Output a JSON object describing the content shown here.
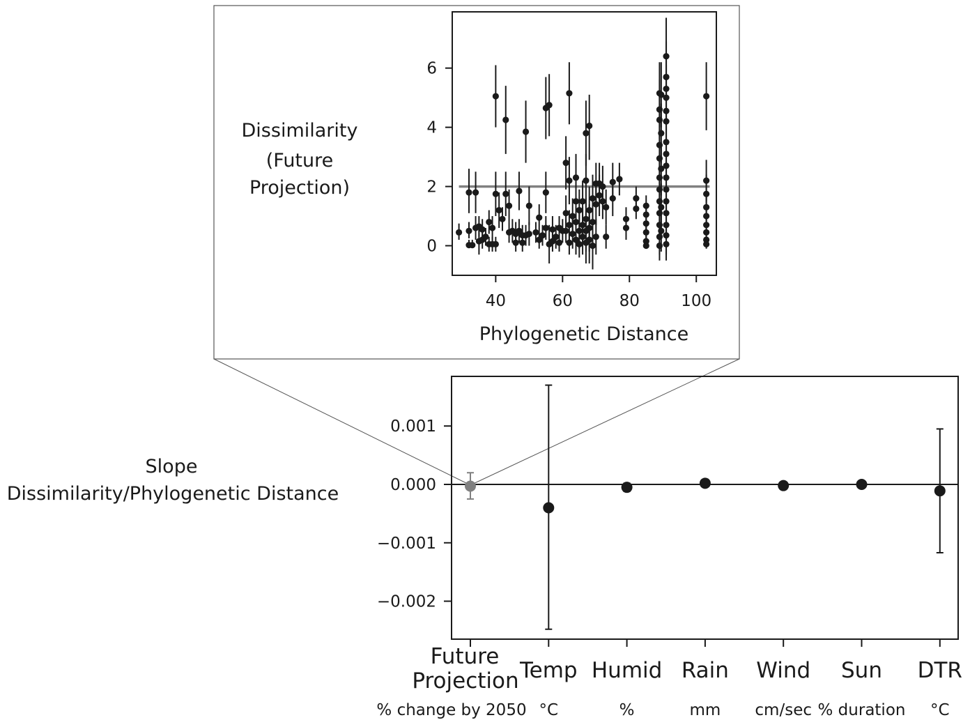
{
  "chart_data": [
    {
      "id": "inset",
      "type": "scatter",
      "xlabel": "Phylogenetic Distance",
      "ylabel_lines": [
        "Dissimilarity",
        "(Future",
        "Projection)"
      ],
      "xticks": [
        40,
        60,
        80,
        100
      ],
      "yticks": [
        0,
        2,
        4,
        6
      ],
      "xlim": [
        27,
        106
      ],
      "ylim": [
        -1.0,
        7.9
      ],
      "fit_line": {
        "x": [
          29,
          104
        ],
        "y": [
          2.0,
          2.0
        ],
        "color": "#808080"
      },
      "points": [
        {
          "x": 29,
          "y": 0.45,
          "lo": 0.2,
          "hi": 0.75
        },
        {
          "x": 32,
          "y": 1.8,
          "lo": 1.1,
          "hi": 2.6
        },
        {
          "x": 32,
          "y": 0.5,
          "lo": 0.25,
          "hi": 0.8
        },
        {
          "x": 32,
          "y": 0.02,
          "lo": 0.0,
          "hi": 0.2
        },
        {
          "x": 33,
          "y": 0.02,
          "lo": 0.0,
          "hi": 0.2
        },
        {
          "x": 34,
          "y": 1.8,
          "lo": 1.1,
          "hi": 2.5
        },
        {
          "x": 34,
          "y": 0.6,
          "lo": 0.2,
          "hi": 1.0
        },
        {
          "x": 35,
          "y": 0.15,
          "lo": -0.3,
          "hi": 0.6
        },
        {
          "x": 35,
          "y": 0.65,
          "lo": 0.3,
          "hi": 1.0
        },
        {
          "x": 36,
          "y": 0.55,
          "lo": 0.3,
          "hi": 0.9
        },
        {
          "x": 36,
          "y": 0.2,
          "lo": -0.1,
          "hi": 0.5
        },
        {
          "x": 37,
          "y": 0.3,
          "lo": 0.0,
          "hi": 0.6
        },
        {
          "x": 38,
          "y": 0.05,
          "lo": -0.2,
          "hi": 0.3
        },
        {
          "x": 38,
          "y": 0.8,
          "lo": 0.4,
          "hi": 1.2
        },
        {
          "x": 39,
          "y": 0.05,
          "lo": -0.2,
          "hi": 0.3
        },
        {
          "x": 39,
          "y": 0.6,
          "lo": 0.2,
          "hi": 1.0
        },
        {
          "x": 40,
          "y": 0.05,
          "lo": -0.2,
          "hi": 0.3
        },
        {
          "x": 40,
          "y": 1.75,
          "lo": 1.0,
          "hi": 2.5
        },
        {
          "x": 40,
          "y": 5.05,
          "lo": 4.0,
          "hi": 6.1
        },
        {
          "x": 41,
          "y": 1.2,
          "lo": 0.6,
          "hi": 1.8
        },
        {
          "x": 42,
          "y": 0.9,
          "lo": 0.5,
          "hi": 1.3
        },
        {
          "x": 43,
          "y": 4.25,
          "lo": 3.1,
          "hi": 5.4
        },
        {
          "x": 43,
          "y": 1.75,
          "lo": 1.0,
          "hi": 2.5
        },
        {
          "x": 44,
          "y": 0.45,
          "lo": 0.1,
          "hi": 0.8
        },
        {
          "x": 44,
          "y": 1.35,
          "lo": 0.8,
          "hi": 1.9
        },
        {
          "x": 45,
          "y": 0.5,
          "lo": 0.1,
          "hi": 0.9
        },
        {
          "x": 46,
          "y": 0.4,
          "lo": 0.0,
          "hi": 0.8
        },
        {
          "x": 46,
          "y": 0.1,
          "lo": -0.2,
          "hi": 0.4
        },
        {
          "x": 47,
          "y": 1.85,
          "lo": 1.2,
          "hi": 2.5
        },
        {
          "x": 47,
          "y": 0.5,
          "lo": 0.1,
          "hi": 0.9
        },
        {
          "x": 48,
          "y": 0.1,
          "lo": -0.2,
          "hi": 0.4
        },
        {
          "x": 48,
          "y": 0.35,
          "lo": 0.0,
          "hi": 0.7
        },
        {
          "x": 49,
          "y": 3.85,
          "lo": 2.8,
          "hi": 4.9
        },
        {
          "x": 49,
          "y": 0.35,
          "lo": 0.0,
          "hi": 0.7
        },
        {
          "x": 50,
          "y": 1.35,
          "lo": 0.7,
          "hi": 2.0
        },
        {
          "x": 50,
          "y": 0.4,
          "lo": 0.0,
          "hi": 0.8
        },
        {
          "x": 52,
          "y": 0.45,
          "lo": 0.1,
          "hi": 0.8
        },
        {
          "x": 53,
          "y": 0.95,
          "lo": 0.5,
          "hi": 1.4
        },
        {
          "x": 53,
          "y": 0.2,
          "lo": -0.1,
          "hi": 0.5
        },
        {
          "x": 54,
          "y": 0.35,
          "lo": 0.0,
          "hi": 0.7
        },
        {
          "x": 55,
          "y": 4.65,
          "lo": 3.6,
          "hi": 5.7
        },
        {
          "x": 55,
          "y": 1.8,
          "lo": 1.1,
          "hi": 2.5
        },
        {
          "x": 55,
          "y": 0.6,
          "lo": 0.2,
          "hi": 1.0
        },
        {
          "x": 56,
          "y": 4.75,
          "lo": 3.7,
          "hi": 5.8
        },
        {
          "x": 56,
          "y": 0.05,
          "lo": -0.6,
          "hi": 0.7
        },
        {
          "x": 57,
          "y": 0.55,
          "lo": 0.1,
          "hi": 1.0
        },
        {
          "x": 57,
          "y": 0.15,
          "lo": -0.2,
          "hi": 0.5
        },
        {
          "x": 58,
          "y": 0.3,
          "lo": -0.1,
          "hi": 0.7
        },
        {
          "x": 59,
          "y": 0.6,
          "lo": 0.2,
          "hi": 1.0
        },
        {
          "x": 59,
          "y": 0.1,
          "lo": -0.2,
          "hi": 0.4
        },
        {
          "x": 60,
          "y": 0.5,
          "lo": 0.1,
          "hi": 0.9
        },
        {
          "x": 61,
          "y": 2.8,
          "lo": 1.9,
          "hi": 3.7
        },
        {
          "x": 61,
          "y": 1.1,
          "lo": 0.5,
          "hi": 1.7
        },
        {
          "x": 61,
          "y": 0.5,
          "lo": 0.1,
          "hi": 0.9
        },
        {
          "x": 62,
          "y": 5.15,
          "lo": 4.1,
          "hi": 6.2
        },
        {
          "x": 62,
          "y": 2.2,
          "lo": 1.4,
          "hi": 3.0
        },
        {
          "x": 62,
          "y": 0.7,
          "lo": 0.2,
          "hi": 1.2
        },
        {
          "x": 62,
          "y": 0.1,
          "lo": -0.3,
          "hi": 0.5
        },
        {
          "x": 63,
          "y": 1.0,
          "lo": 0.4,
          "hi": 1.6
        },
        {
          "x": 63,
          "y": 0.4,
          "lo": -0.1,
          "hi": 0.9
        },
        {
          "x": 64,
          "y": 2.3,
          "lo": 1.5,
          "hi": 3.1
        },
        {
          "x": 64,
          "y": 1.5,
          "lo": 0.8,
          "hi": 2.2
        },
        {
          "x": 64,
          "y": 0.8,
          "lo": 0.2,
          "hi": 1.4
        },
        {
          "x": 64,
          "y": 0.2,
          "lo": -0.3,
          "hi": 0.7
        },
        {
          "x": 65,
          "y": 0.5,
          "lo": -0.1,
          "hi": 1.1
        },
        {
          "x": 65,
          "y": 1.2,
          "lo": 0.5,
          "hi": 1.9
        },
        {
          "x": 65,
          "y": 0.05,
          "lo": -0.4,
          "hi": 0.5
        },
        {
          "x": 66,
          "y": 0.7,
          "lo": 0.1,
          "hi": 1.3
        },
        {
          "x": 66,
          "y": 0.3,
          "lo": -0.3,
          "hi": 0.9
        },
        {
          "x": 66,
          "y": 1.5,
          "lo": 0.8,
          "hi": 2.2
        },
        {
          "x": 67,
          "y": 2.2,
          "lo": 1.3,
          "hi": 3.1
        },
        {
          "x": 67,
          "y": 3.8,
          "lo": 2.7,
          "hi": 4.9
        },
        {
          "x": 67,
          "y": 0.9,
          "lo": 0.2,
          "hi": 1.6
        },
        {
          "x": 67,
          "y": 0.1,
          "lo": -0.6,
          "hi": 0.8
        },
        {
          "x": 67,
          "y": 0.5,
          "lo": -0.2,
          "hi": 1.2
        },
        {
          "x": 68,
          "y": 4.05,
          "lo": 2.9,
          "hi": 5.1
        },
        {
          "x": 68,
          "y": 1.2,
          "lo": 0.4,
          "hi": 2.0
        },
        {
          "x": 68,
          "y": 0.6,
          "lo": -0.2,
          "hi": 1.4
        },
        {
          "x": 68,
          "y": 0.2,
          "lo": -0.6,
          "hi": 1.0
        },
        {
          "x": 69,
          "y": 0.8,
          "lo": 0.0,
          "hi": 1.6
        },
        {
          "x": 69,
          "y": 1.6,
          "lo": 0.8,
          "hi": 2.4
        },
        {
          "x": 69,
          "y": 0.0,
          "lo": -0.8,
          "hi": 0.8
        },
        {
          "x": 70,
          "y": 2.1,
          "lo": 1.4,
          "hi": 2.8
        },
        {
          "x": 70,
          "y": 1.4,
          "lo": 0.7,
          "hi": 2.1
        },
        {
          "x": 70,
          "y": 0.3,
          "lo": -0.3,
          "hi": 0.9
        },
        {
          "x": 71,
          "y": 2.1,
          "lo": 1.4,
          "hi": 2.8
        },
        {
          "x": 71,
          "y": 1.7,
          "lo": 1.0,
          "hi": 2.4
        },
        {
          "x": 72,
          "y": 2.0,
          "lo": 1.3,
          "hi": 2.7
        },
        {
          "x": 72,
          "y": 1.5,
          "lo": 0.9,
          "hi": 2.1
        },
        {
          "x": 73,
          "y": 1.3,
          "lo": 0.7,
          "hi": 1.9
        },
        {
          "x": 73,
          "y": 0.3,
          "lo": -0.1,
          "hi": 0.7
        },
        {
          "x": 75,
          "y": 2.15,
          "lo": 1.5,
          "hi": 2.8
        },
        {
          "x": 75,
          "y": 1.6,
          "lo": 1.0,
          "hi": 2.2
        },
        {
          "x": 77,
          "y": 2.25,
          "lo": 1.7,
          "hi": 2.8
        },
        {
          "x": 79,
          "y": 0.9,
          "lo": 0.5,
          "hi": 1.3
        },
        {
          "x": 79,
          "y": 0.6,
          "lo": 0.2,
          "hi": 1.0
        },
        {
          "x": 82,
          "y": 1.6,
          "lo": 1.2,
          "hi": 2.0
        },
        {
          "x": 82,
          "y": 1.25,
          "lo": 0.9,
          "hi": 1.6
        },
        {
          "x": 85,
          "y": 1.35,
          "lo": 1.0,
          "hi": 1.7
        },
        {
          "x": 85,
          "y": 1.05,
          "lo": 0.7,
          "hi": 1.4
        },
        {
          "x": 85,
          "y": 0.75,
          "lo": 0.4,
          "hi": 1.1
        },
        {
          "x": 85,
          "y": 0.45,
          "lo": 0.1,
          "hi": 0.8
        },
        {
          "x": 85,
          "y": 0.15,
          "lo": -0.1,
          "hi": 0.4
        },
        {
          "x": 85,
          "y": 0.0,
          "lo": -0.1,
          "hi": 0.2
        },
        {
          "x": 89,
          "y": 5.15,
          "lo": 4.2,
          "hi": 6.2
        },
        {
          "x": 89,
          "y": 4.6,
          "lo": 3.6,
          "hi": 5.6
        },
        {
          "x": 89,
          "y": 4.25,
          "lo": 3.3,
          "hi": 5.2
        },
        {
          "x": 89,
          "y": 3.4,
          "lo": 2.5,
          "hi": 4.3
        },
        {
          "x": 89,
          "y": 2.95,
          "lo": 2.1,
          "hi": 3.8
        },
        {
          "x": 89,
          "y": 2.3,
          "lo": 1.5,
          "hi": 3.1
        },
        {
          "x": 89,
          "y": 1.9,
          "lo": 1.1,
          "hi": 2.7
        },
        {
          "x": 89,
          "y": 1.5,
          "lo": 0.8,
          "hi": 2.2
        },
        {
          "x": 89,
          "y": 1.1,
          "lo": 0.4,
          "hi": 1.8
        },
        {
          "x": 89,
          "y": 0.7,
          "lo": 0.0,
          "hi": 1.4
        },
        {
          "x": 89,
          "y": 0.3,
          "lo": -0.3,
          "hi": 0.9
        },
        {
          "x": 89,
          "y": 0.0,
          "lo": -0.5,
          "hi": 0.5
        },
        {
          "x": 89.5,
          "y": 5.1,
          "lo": 4.0,
          "hi": 6.2
        },
        {
          "x": 89.5,
          "y": 3.8,
          "lo": 2.8,
          "hi": 4.8
        },
        {
          "x": 89.5,
          "y": 2.6,
          "lo": 1.7,
          "hi": 3.5
        },
        {
          "x": 89.5,
          "y": 1.3,
          "lo": 0.5,
          "hi": 2.1
        },
        {
          "x": 89.5,
          "y": 0.5,
          "lo": -0.2,
          "hi": 1.2
        },
        {
          "x": 91,
          "y": 6.4,
          "lo": 5.1,
          "hi": 7.7
        },
        {
          "x": 91,
          "y": 5.7,
          "lo": 4.5,
          "hi": 6.9
        },
        {
          "x": 91,
          "y": 5.3,
          "lo": 4.2,
          "hi": 6.4
        },
        {
          "x": 91,
          "y": 5.0,
          "lo": 3.9,
          "hi": 6.1
        },
        {
          "x": 91,
          "y": 4.55,
          "lo": 3.5,
          "hi": 5.6
        },
        {
          "x": 91,
          "y": 4.2,
          "lo": 3.2,
          "hi": 5.2
        },
        {
          "x": 91,
          "y": 3.5,
          "lo": 2.6,
          "hi": 4.4
        },
        {
          "x": 91,
          "y": 3.1,
          "lo": 2.2,
          "hi": 4.0
        },
        {
          "x": 91,
          "y": 2.7,
          "lo": 1.8,
          "hi": 3.6
        },
        {
          "x": 91,
          "y": 2.3,
          "lo": 1.5,
          "hi": 3.1
        },
        {
          "x": 91,
          "y": 1.9,
          "lo": 1.1,
          "hi": 2.7
        },
        {
          "x": 91,
          "y": 1.5,
          "lo": 0.8,
          "hi": 2.2
        },
        {
          "x": 91,
          "y": 1.1,
          "lo": 0.4,
          "hi": 1.8
        },
        {
          "x": 91,
          "y": 0.7,
          "lo": 0.0,
          "hi": 1.4
        },
        {
          "x": 91,
          "y": 0.35,
          "lo": -0.3,
          "hi": 1.0
        },
        {
          "x": 91,
          "y": 0.05,
          "lo": -0.5,
          "hi": 0.6
        },
        {
          "x": 103,
          "y": 5.05,
          "lo": 3.9,
          "hi": 6.2
        },
        {
          "x": 103,
          "y": 2.2,
          "lo": 1.5,
          "hi": 2.9
        },
        {
          "x": 103,
          "y": 1.75,
          "lo": 1.1,
          "hi": 2.4
        },
        {
          "x": 103,
          "y": 1.3,
          "lo": 0.8,
          "hi": 1.8
        },
        {
          "x": 103,
          "y": 1.0,
          "lo": 0.6,
          "hi": 1.4
        },
        {
          "x": 103,
          "y": 0.7,
          "lo": 0.4,
          "hi": 1.0
        },
        {
          "x": 103,
          "y": 0.45,
          "lo": 0.2,
          "hi": 0.7
        },
        {
          "x": 103,
          "y": 0.2,
          "lo": 0.0,
          "hi": 0.4
        },
        {
          "x": 103,
          "y": 0.05,
          "lo": -0.1,
          "hi": 0.2
        }
      ]
    },
    {
      "id": "main",
      "type": "scatter",
      "ylabel_lines": [
        "Slope",
        "Dissimilarity/Phylogenetic Distance"
      ],
      "yticks": [
        0.001,
        0.0,
        -0.001,
        -0.002
      ],
      "ytick_labels": [
        "0.001",
        "0.000",
        "−0.001",
        "−0.002"
      ],
      "ylim": [
        -0.00265,
        0.00185
      ],
      "zero_line": 0.0,
      "categories": [
        {
          "label_lines": [
            "Future",
            "Projection"
          ],
          "unit": "% change by 2050",
          "value": -3e-05,
          "lo": -0.00025,
          "hi": 0.0002,
          "color": "#808080"
        },
        {
          "label_lines": [
            "Temp"
          ],
          "unit": "°C",
          "value": -0.0004,
          "lo": -0.00248,
          "hi": 0.0017,
          "color": "#1a1a1a"
        },
        {
          "label_lines": [
            "Humid"
          ],
          "unit": "%",
          "value": -5e-05,
          "lo": -0.00012,
          "hi": 2e-05,
          "color": "#1a1a1a"
        },
        {
          "label_lines": [
            "Rain"
          ],
          "unit": "mm",
          "value": 2e-05,
          "lo": 0.0,
          "hi": 4e-05,
          "color": "#1a1a1a"
        },
        {
          "label_lines": [
            "Wind"
          ],
          "unit": "cm/sec",
          "value": -2e-05,
          "lo": -3e-05,
          "hi": 0.0,
          "color": "#1a1a1a"
        },
        {
          "label_lines": [
            "Sun"
          ],
          "unit": "% duration",
          "value": 0.0,
          "lo": -1e-05,
          "hi": 1e-05,
          "color": "#1a1a1a"
        },
        {
          "label_lines": [
            "DTR"
          ],
          "unit": "°C",
          "value": -0.00011,
          "lo": -0.00117,
          "hi": 0.00095,
          "color": "#1a1a1a"
        }
      ]
    }
  ]
}
